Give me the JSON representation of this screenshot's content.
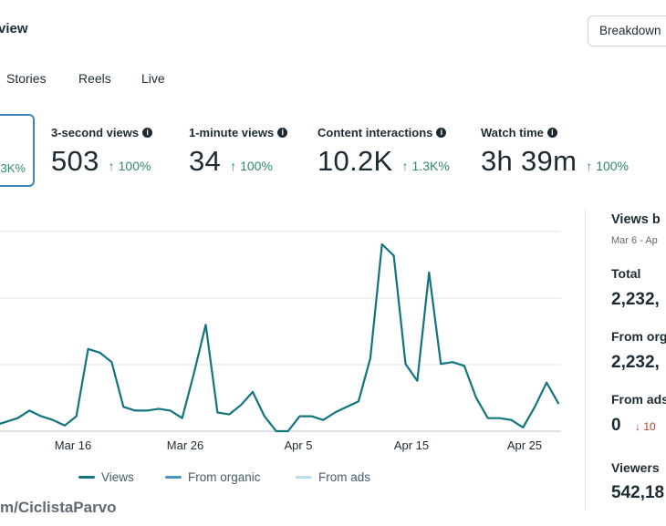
{
  "header": {
    "title": "view",
    "breakdown_label": "Breakdown"
  },
  "tabs": [
    {
      "label": "Stories"
    },
    {
      "label": "Reels"
    },
    {
      "label": "Live"
    }
  ],
  "selected_metric": {
    "change": "3K%"
  },
  "metrics": [
    {
      "label": "3-second views",
      "value": "503",
      "change": "100%"
    },
    {
      "label": "1-minute views",
      "value": "34",
      "change": "100%"
    },
    {
      "label": "Content interactions",
      "value": "10.2K",
      "change": "1.3K%"
    },
    {
      "label": "Watch time",
      "value": "3h 39m",
      "change": "100%"
    }
  ],
  "chart_data": {
    "type": "line",
    "x_tick_labels": [
      "Mar 16",
      "Mar 26",
      "Apr 5",
      "Apr 15",
      "Apr 25"
    ],
    "series": [
      {
        "name": "Views",
        "color": "#12747e",
        "points": [
          [
            0,
            0.04
          ],
          [
            0.5,
            0.05
          ],
          [
            1.5,
            0.07
          ],
          [
            2.5,
            0.11
          ],
          [
            3.5,
            0.08
          ],
          [
            4.5,
            0.06
          ],
          [
            5.5,
            0.03
          ],
          [
            6.5,
            0.08
          ],
          [
            7.5,
            0.44
          ],
          [
            8.5,
            0.42
          ],
          [
            9.5,
            0.37
          ],
          [
            10.5,
            0.13
          ],
          [
            11.5,
            0.11
          ],
          [
            12.5,
            0.11
          ],
          [
            13.5,
            0.12
          ],
          [
            14.5,
            0.11
          ],
          [
            15.5,
            0.07
          ],
          [
            16.5,
            0.31
          ],
          [
            17.5,
            0.57
          ],
          [
            18.5,
            0.1
          ],
          [
            19.5,
            0.09
          ],
          [
            20.5,
            0.14
          ],
          [
            21.5,
            0.21
          ],
          [
            22.5,
            0.08
          ],
          [
            23.5,
            0.0
          ],
          [
            24.5,
            0.0
          ],
          [
            25.5,
            0.08
          ],
          [
            26.5,
            0.08
          ],
          [
            27.5,
            0.06
          ],
          [
            28.5,
            0.1
          ],
          [
            29.5,
            0.13
          ],
          [
            30.5,
            0.16
          ],
          [
            31.5,
            0.39
          ],
          [
            32.5,
            1.0
          ],
          [
            33.5,
            0.94
          ],
          [
            34.5,
            0.36
          ],
          [
            35.5,
            0.27
          ],
          [
            36.5,
            0.85
          ],
          [
            37.5,
            0.36
          ],
          [
            38.5,
            0.37
          ],
          [
            39.5,
            0.35
          ],
          [
            40.5,
            0.18
          ],
          [
            41.5,
            0.07
          ],
          [
            42.5,
            0.07
          ],
          [
            43.5,
            0.06
          ],
          [
            44.5,
            0.02
          ],
          [
            45.5,
            0.13
          ],
          [
            46.5,
            0.26
          ],
          [
            47.5,
            0.15
          ]
        ]
      }
    ],
    "legend": [
      {
        "name": "Views",
        "color": "#12747e"
      },
      {
        "name": "From organic",
        "color": "#4a94c4"
      },
      {
        "name": "From ads",
        "color": "#b6dcee"
      }
    ],
    "grid": true,
    "legend_position": "bottom"
  },
  "watermark": "m/CiclistaParvo",
  "side_panel": {
    "title": "Views b",
    "subtitle": "Mar 6 - Ap",
    "total_label": "Total",
    "total_value": "2,232,",
    "organic_label": "From org",
    "organic_value": "2,232,",
    "ads_label": "From ads",
    "ads_value": "0",
    "ads_change": "10",
    "viewers_label": "Viewers",
    "viewers_value": "542,18"
  }
}
